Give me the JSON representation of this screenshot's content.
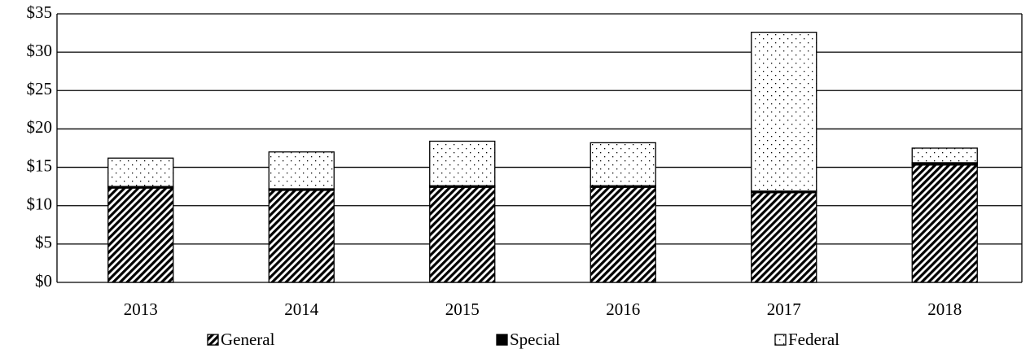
{
  "chart_data": {
    "type": "bar",
    "stacked": true,
    "categories": [
      "2013",
      "2014",
      "2015",
      "2016",
      "2017",
      "2018"
    ],
    "series": [
      {
        "name": "General",
        "color": "#000000",
        "pattern": "hatch",
        "values": [
          12.3,
          12.0,
          12.4,
          12.4,
          11.7,
          15.3
        ]
      },
      {
        "name": "Special",
        "color": "#000000",
        "pattern": "solid",
        "values": [
          0.2,
          0.2,
          0.2,
          0.2,
          0.2,
          0.3
        ]
      },
      {
        "name": "Federal",
        "color": "#000000",
        "pattern": "dots",
        "values": [
          3.7,
          4.8,
          5.8,
          5.6,
          20.7,
          1.9
        ]
      }
    ],
    "ylim": [
      0,
      35
    ],
    "yticks": [
      {
        "value": 0,
        "label": "$0"
      },
      {
        "value": 5,
        "label": "$5"
      },
      {
        "value": 10,
        "label": "$10"
      },
      {
        "value": 15,
        "label": "$15"
      },
      {
        "value": 20,
        "label": "$20"
      },
      {
        "value": 25,
        "label": "$25"
      },
      {
        "value": 30,
        "label": "$30"
      },
      {
        "value": 35,
        "label": "$35"
      }
    ],
    "grid": true,
    "legend": "bottom"
  }
}
